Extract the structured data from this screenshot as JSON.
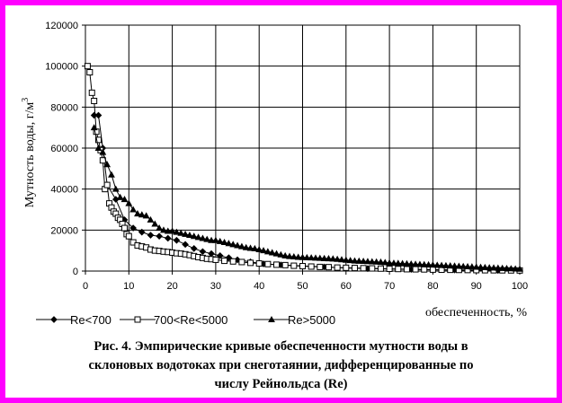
{
  "chart_data": {
    "type": "line",
    "xlabel": "обеспеченность, %",
    "ylabel": "Мутность воды, г/м",
    "ylabel_sup": "3",
    "xlim": [
      0,
      100
    ],
    "ylim": [
      0,
      120000
    ],
    "xticks": [
      0,
      10,
      20,
      30,
      40,
      50,
      60,
      70,
      80,
      90,
      100
    ],
    "yticks": [
      0,
      20000,
      40000,
      60000,
      80000,
      100000,
      120000
    ],
    "grid": true,
    "legend_position": "bottom",
    "series": [
      {
        "name": "Re<700",
        "marker": "diamond",
        "x": [
          2,
          3,
          4,
          5,
          7,
          9,
          11,
          13,
          15,
          17,
          19,
          21,
          23,
          25,
          27,
          29,
          31,
          33,
          35,
          38,
          41,
          45,
          50,
          55,
          60,
          65,
          70,
          75,
          80,
          85,
          90,
          95,
          100
        ],
        "y": [
          76000,
          76000,
          60000,
          42000,
          35000,
          25000,
          21000,
          19000,
          17500,
          17000,
          16000,
          15000,
          13000,
          11000,
          9500,
          8500,
          7500,
          6500,
          5500,
          4500,
          3500,
          3000,
          2500,
          2000,
          1500,
          1200,
          1000,
          800,
          600,
          500,
          400,
          300,
          200
        ]
      },
      {
        "name": "700<Re<5000",
        "marker": "square",
        "x": [
          0.5,
          1,
          1.5,
          2,
          2.5,
          3,
          3.5,
          4,
          4.5,
          5,
          5.5,
          6,
          6.5,
          7,
          7.5,
          8,
          8.5,
          9,
          9.5,
          10,
          11,
          12,
          13,
          14,
          15,
          16,
          17,
          18,
          19,
          20,
          21,
          22,
          23,
          24,
          25,
          26,
          27,
          28,
          29,
          30,
          32,
          34,
          36,
          38,
          40,
          42,
          44,
          46,
          48,
          50,
          52,
          54,
          56,
          58,
          60,
          62,
          64,
          66,
          68,
          70,
          72,
          74,
          76,
          78,
          80,
          82,
          84,
          86,
          88,
          90,
          92,
          94,
          96,
          98,
          100
        ],
        "y": [
          100000,
          97000,
          87000,
          83000,
          68000,
          64000,
          59000,
          54000,
          40000,
          42000,
          33000,
          31000,
          29000,
          28000,
          26000,
          25000,
          23000,
          21000,
          18000,
          17000,
          14000,
          12500,
          12000,
          11500,
          10500,
          10000,
          9800,
          9500,
          9300,
          9000,
          8700,
          8500,
          8200,
          7800,
          7300,
          6800,
          6400,
          6000,
          5800,
          5500,
          5000,
          4700,
          4400,
          4000,
          3700,
          3400,
          3100,
          2900,
          2600,
          2400,
          2200,
          2000,
          1900,
          1700,
          1600,
          1500,
          1400,
          1300,
          1200,
          1100,
          1000,
          900,
          850,
          800,
          700,
          650,
          600,
          550,
          500,
          450,
          400,
          380,
          350,
          320,
          300
        ]
      },
      {
        "name": "Re>5000",
        "marker": "triangle",
        "x": [
          2,
          3,
          4,
          5,
          6,
          7,
          8,
          9,
          10,
          11,
          12,
          13,
          14,
          15,
          16,
          17,
          18,
          19,
          20,
          21,
          22,
          23,
          24,
          25,
          26,
          27,
          28,
          29,
          30,
          31,
          32,
          33,
          34,
          35,
          36,
          37,
          38,
          39,
          40,
          41,
          42,
          43,
          44,
          45,
          46,
          47,
          48,
          49,
          50,
          51,
          52,
          53,
          54,
          55,
          56,
          57,
          58,
          59,
          60,
          61,
          62,
          63,
          64,
          65,
          66,
          67,
          68,
          69,
          70,
          71,
          72,
          73,
          74,
          75,
          76,
          77,
          78,
          79,
          80,
          81,
          82,
          83,
          84,
          85,
          86,
          87,
          88,
          89,
          90,
          91,
          92,
          93,
          94,
          95,
          96,
          97,
          98,
          99,
          100
        ],
        "y": [
          70000,
          60000,
          58000,
          52000,
          47000,
          40000,
          36000,
          35000,
          33000,
          30000,
          28000,
          27500,
          27000,
          25000,
          23000,
          21000,
          20000,
          19500,
          19500,
          19000,
          18500,
          18000,
          17500,
          17000,
          16500,
          16000,
          15500,
          15000,
          15000,
          14500,
          14000,
          13500,
          13000,
          12500,
          12000,
          11500,
          11200,
          11000,
          10500,
          10000,
          9500,
          9000,
          8500,
          8000,
          7500,
          7200,
          7000,
          6800,
          6700,
          6600,
          6500,
          6400,
          6300,
          6200,
          6100,
          6000,
          5800,
          5600,
          5400,
          5200,
          5000,
          4900,
          4800,
          4700,
          4600,
          4500,
          4400,
          4200,
          4000,
          3900,
          3800,
          3700,
          3600,
          3500,
          3400,
          3300,
          3200,
          3100,
          3000,
          2900,
          2800,
          2700,
          2600,
          2500,
          2400,
          2300,
          2200,
          2100,
          2000,
          1900,
          1800,
          1700,
          1600,
          1500,
          1400,
          1300,
          1200,
          1100,
          1000
        ]
      }
    ]
  },
  "caption": {
    "line1": "Рис. 4. Эмпирические кривые обеспеченности мутности воды в",
    "line2": "склоновых водотоках при снеготаянии, дифференцированные по",
    "line3": "числу Рейнольдса (Re)"
  },
  "colors": {
    "frame": "#ff00ff",
    "series": "#000000"
  }
}
